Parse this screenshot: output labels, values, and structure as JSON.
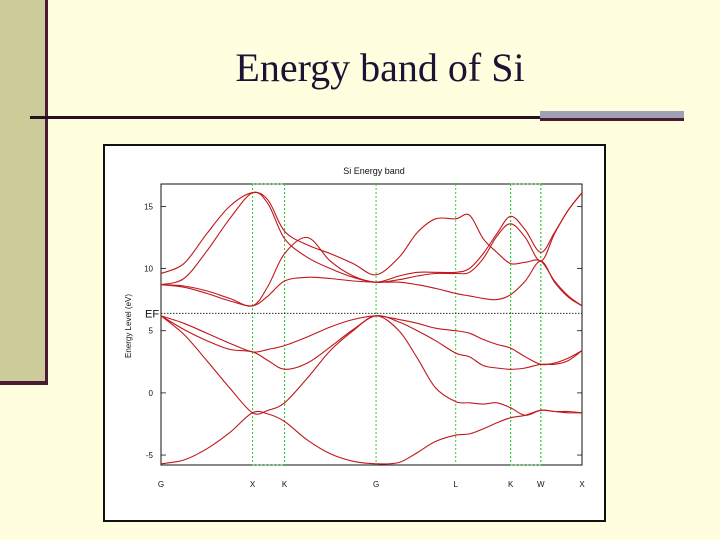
{
  "slide": {
    "title": "Energy band of Si"
  },
  "colors": {
    "background": "#ffffe0",
    "accent_bar": "#cccc99",
    "band_line": "#c0181c",
    "symmetry_line": "#33cc33"
  },
  "chart_data": {
    "type": "line",
    "title": "Si Energy band",
    "xlabel": "",
    "ylabel": "Energy Level (eV)",
    "ylim": [
      -5.8,
      16.8
    ],
    "yticks": [
      -5,
      0,
      5,
      10,
      15
    ],
    "grid": false,
    "symmetry_points": [
      {
        "label": "G",
        "x": 0
      },
      {
        "label": "X",
        "x": 1
      },
      {
        "label": "K",
        "x": 1.35
      },
      {
        "label": "G",
        "x": 2.35
      },
      {
        "label": "L",
        "x": 3.22
      },
      {
        "label": "K",
        "x": 3.82
      },
      {
        "label": "W",
        "x": 4.15
      },
      {
        "label": "X",
        "x": 4.6
      }
    ],
    "fermi": {
      "label": "EF",
      "y": 6.4
    },
    "xlim": [
      0,
      4.6
    ],
    "series": [
      {
        "x": [
          0,
          0.25,
          0.5,
          0.75,
          1,
          1.17,
          1.35,
          1.6,
          1.85,
          2.1,
          2.35,
          2.6,
          2.8,
          3.0,
          3.22,
          3.37,
          3.52,
          3.67,
          3.82,
          3.98,
          4.15,
          4.3,
          4.45,
          4.6
        ],
        "values": [
          -5.7,
          -5.4,
          -4.5,
          -3.2,
          -1.6,
          -1.7,
          -2.3,
          -3.8,
          -4.9,
          -5.5,
          -5.7,
          -5.6,
          -4.8,
          -3.9,
          -3.4,
          -3.3,
          -2.9,
          -2.4,
          -2.0,
          -1.8,
          -1.4,
          -1.5,
          -1.6,
          -1.6
        ]
      },
      {
        "x": [
          0,
          0.25,
          0.5,
          0.75,
          1,
          1.17,
          1.35,
          1.6,
          1.85,
          2.1,
          2.35,
          2.6,
          2.8,
          3.0,
          3.22,
          3.37,
          3.52,
          3.67,
          3.82,
          3.98,
          4.15,
          4.3,
          4.45,
          4.6
        ],
        "values": [
          6.2,
          4.7,
          2.6,
          0.4,
          -1.6,
          -1.4,
          -0.8,
          1.2,
          3.4,
          5.0,
          6.2,
          5.0,
          2.8,
          0.4,
          -0.7,
          -0.8,
          -0.9,
          -0.8,
          -1.2,
          -1.8,
          -1.4,
          -1.5,
          -1.5,
          -1.6
        ]
      },
      {
        "x": [
          0,
          0.25,
          0.5,
          0.75,
          1,
          1.17,
          1.35,
          1.6,
          1.85,
          2.1,
          2.35,
          2.6,
          2.8,
          3.0,
          3.22,
          3.37,
          3.52,
          3.67,
          3.82,
          3.98,
          4.15,
          4.3,
          4.45,
          4.6
        ],
        "values": [
          6.2,
          5.1,
          4.2,
          3.5,
          3.3,
          2.6,
          1.9,
          2.4,
          3.7,
          5.1,
          6.2,
          5.7,
          5.0,
          4.2,
          3.2,
          2.9,
          2.2,
          2.0,
          1.9,
          2.0,
          2.3,
          2.3,
          2.6,
          3.4
        ]
      },
      {
        "x": [
          0,
          0.25,
          0.5,
          0.75,
          1,
          1.17,
          1.35,
          1.6,
          1.85,
          2.1,
          2.35,
          2.6,
          2.8,
          3.0,
          3.22,
          3.37,
          3.52,
          3.67,
          3.82,
          3.98,
          4.15,
          4.3,
          4.45,
          4.6
        ],
        "values": [
          6.2,
          5.6,
          4.8,
          4.0,
          3.3,
          3.5,
          3.8,
          4.5,
          5.3,
          5.9,
          6.2,
          5.9,
          5.6,
          5.2,
          5.0,
          4.8,
          4.3,
          3.9,
          3.6,
          2.9,
          2.3,
          2.4,
          2.8,
          3.4
        ]
      },
      {
        "x": [
          0,
          0.25,
          0.5,
          0.75,
          1,
          1.17,
          1.35,
          1.6,
          1.85,
          2.1,
          2.35,
          2.6,
          2.8,
          3.0,
          3.22,
          3.37,
          3.52,
          3.67,
          3.82,
          3.98,
          4.15,
          4.3,
          4.45,
          4.6
        ],
        "values": [
          8.7,
          8.5,
          8.0,
          7.4,
          7.0,
          7.8,
          9.0,
          9.3,
          9.2,
          9.0,
          8.9,
          8.9,
          8.7,
          8.4,
          8.0,
          7.8,
          7.6,
          7.5,
          7.9,
          9.0,
          10.6,
          8.9,
          7.7,
          7.0
        ]
      },
      {
        "x": [
          0,
          0.25,
          0.5,
          0.75,
          1,
          1.17,
          1.35,
          1.6,
          1.85,
          2.1,
          2.35,
          2.6,
          2.8,
          3.0,
          3.22,
          3.37,
          3.52,
          3.67,
          3.82,
          3.98,
          4.15,
          4.3,
          4.45,
          4.6
        ],
        "values": [
          8.7,
          8.6,
          8.2,
          7.6,
          7.0,
          8.6,
          11.2,
          12.5,
          10.6,
          9.4,
          8.9,
          9.1,
          9.4,
          9.6,
          9.6,
          9.7,
          10.8,
          12.6,
          13.6,
          12.5,
          10.6,
          12.8,
          14.7,
          16.1
        ]
      },
      {
        "x": [
          0,
          0.25,
          0.5,
          0.75,
          1,
          1.17,
          1.35,
          1.6,
          1.85,
          2.1,
          2.35,
          2.6,
          2.8,
          3.0,
          3.22,
          3.37,
          3.52,
          3.67,
          3.82,
          3.98,
          4.15,
          4.3,
          4.45,
          4.6
        ],
        "values": [
          8.7,
          9.2,
          11.4,
          14.0,
          16.1,
          15.2,
          12.4,
          10.9,
          10.0,
          9.3,
          8.9,
          9.4,
          9.7,
          9.7,
          9.7,
          10.0,
          11.2,
          12.8,
          14.2,
          13.1,
          11.3,
          12.9,
          14.7,
          16.1
        ]
      },
      {
        "x": [
          0,
          0.25,
          0.5,
          0.75,
          1,
          1.17,
          1.35,
          1.6,
          1.85,
          2.1,
          2.35,
          2.6,
          2.8,
          3.0,
          3.22,
          3.37,
          3.52,
          3.67,
          3.82,
          3.98,
          4.15,
          4.3,
          4.45,
          4.6
        ],
        "values": [
          9.6,
          10.4,
          12.8,
          15.0,
          16.1,
          15.5,
          13.0,
          11.9,
          11.2,
          10.4,
          9.5,
          10.9,
          12.9,
          14.0,
          14.0,
          14.3,
          12.4,
          11.3,
          10.4,
          10.5,
          10.6,
          9.0,
          7.8,
          7.0
        ]
      }
    ]
  }
}
